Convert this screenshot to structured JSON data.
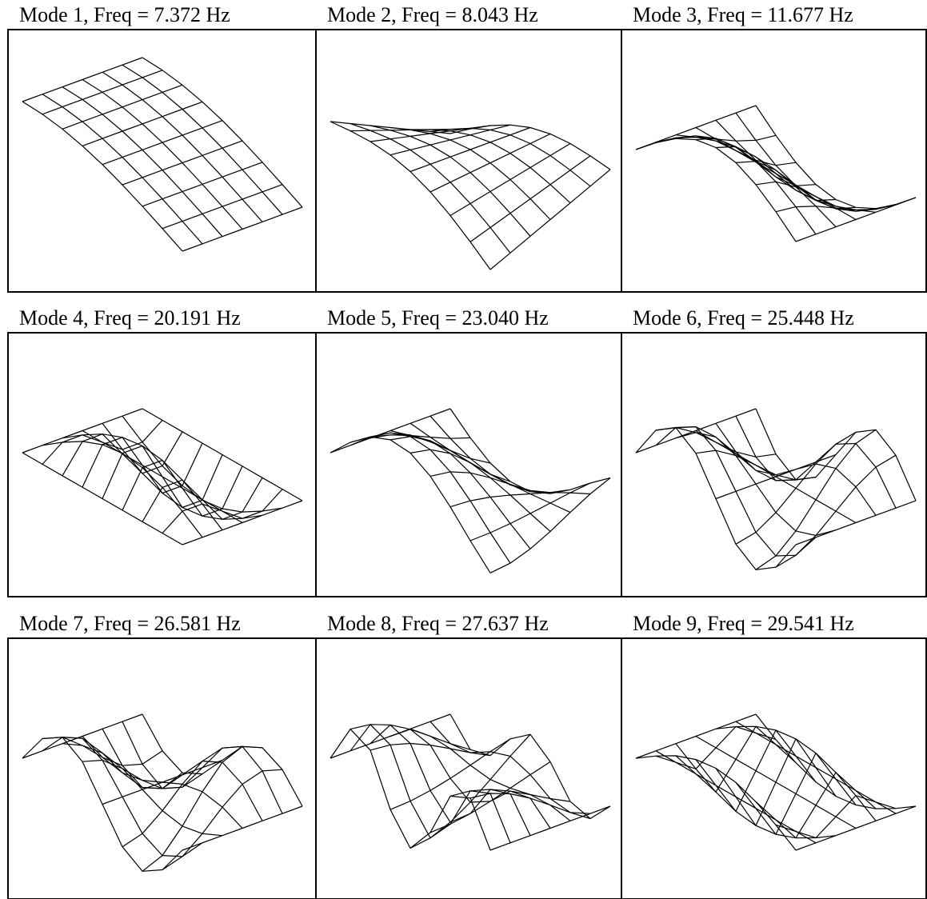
{
  "panels": [
    {
      "title": "Mode 1, Freq = 7.372 Hz"
    },
    {
      "title": "Mode 2, Freq = 8.043 Hz"
    },
    {
      "title": "Mode 3, Freq = 11.677 Hz"
    },
    {
      "title": "Mode 4, Freq = 20.191 Hz"
    },
    {
      "title": "Mode 5, Freq = 23.040 Hz"
    },
    {
      "title": "Mode 6, Freq = 25.448 Hz"
    },
    {
      "title": "Mode 7, Freq = 26.581 Hz"
    },
    {
      "title": "Mode 8, Freq = 27.637 Hz"
    },
    {
      "title": "Mode 9, Freq = 29.541 Hz"
    }
  ]
}
